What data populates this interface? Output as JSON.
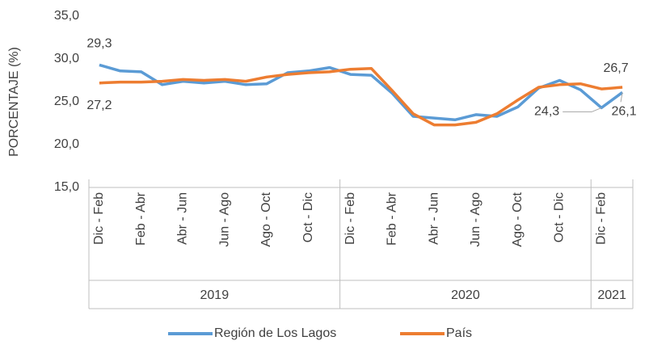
{
  "chart_data": {
    "type": "line",
    "y_label": "PORCENTAJE (%)",
    "categories": [
      "Dic - Feb",
      null,
      "Feb - Abr",
      null,
      "Abr - Jun",
      null,
      "Jun - Ago",
      null,
      "Ago - Oct",
      null,
      "Oct - Dic",
      null,
      "Dic - Feb",
      null,
      "Feb - Abr",
      null,
      "Abr - Jun",
      null,
      "Jun - Ago",
      null,
      "Ago - Oct",
      null,
      "Oct - Dic",
      null,
      "Dic - Feb",
      null
    ],
    "groups": [
      "2019",
      "2020",
      "2021"
    ],
    "series": [
      {
        "name": "Región de Los Lagos",
        "color": "#5b9bd5",
        "values": [
          29.3,
          28.6,
          28.5,
          27.0,
          27.4,
          27.2,
          27.4,
          27.0,
          27.1,
          28.4,
          28.6,
          29.0,
          28.2,
          28.1,
          26.0,
          23.3,
          23.1,
          22.9,
          23.5,
          23.3,
          24.4,
          26.6,
          27.5,
          26.4,
          24.3,
          26.1
        ],
        "value_labels": [
          "29,3",
          null,
          null,
          null,
          null,
          null,
          null,
          null,
          null,
          null,
          null,
          null,
          null,
          null,
          null,
          null,
          null,
          null,
          null,
          null,
          null,
          null,
          null,
          null,
          "24,3",
          "26,1"
        ]
      },
      {
        "name": "País",
        "color": "#ed7d31",
        "values": [
          27.2,
          27.3,
          27.3,
          27.4,
          27.6,
          27.5,
          27.6,
          27.4,
          27.9,
          28.2,
          28.4,
          28.5,
          28.8,
          28.9,
          26.3,
          23.6,
          22.3,
          22.3,
          22.6,
          23.6,
          25.2,
          26.7,
          27.0,
          27.1,
          26.5,
          26.7
        ],
        "value_labels": [
          "27,2",
          null,
          null,
          null,
          null,
          null,
          null,
          null,
          null,
          null,
          null,
          null,
          null,
          null,
          null,
          null,
          null,
          null,
          null,
          null,
          null,
          null,
          null,
          null,
          null,
          "26,7"
        ]
      }
    ],
    "ylim": [
      15,
      35
    ],
    "yticks": [
      {
        "value": 15,
        "label": "15,0"
      },
      {
        "value": 20,
        "label": "20,0"
      },
      {
        "value": 25,
        "label": "25,0"
      },
      {
        "value": 30,
        "label": "30,0"
      },
      {
        "value": 35,
        "label": "35,0"
      }
    ],
    "grid": false,
    "legend": "bottom"
  }
}
